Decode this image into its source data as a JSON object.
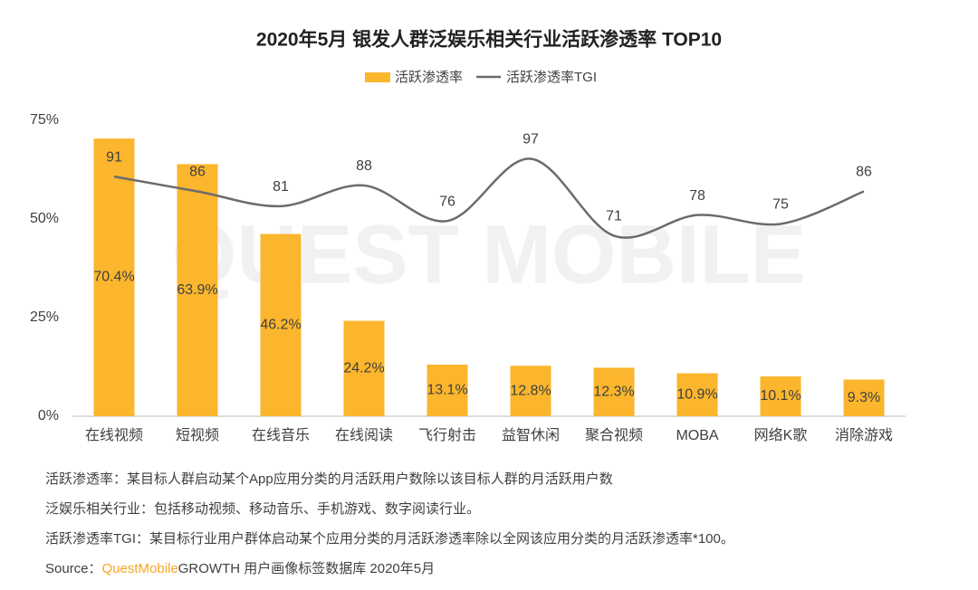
{
  "chart_data": {
    "type": "bar",
    "title": "2020年5月 银发人群泛娱乐相关行业活跃渗透率 TOP10",
    "watermark": "QUEST MOBILE",
    "categories": [
      "在线视频",
      "短视频",
      "在线音乐",
      "在线阅读",
      "飞行射击",
      "益智休闲",
      "聚合视频",
      "MOBA",
      "网络K歌",
      "消除游戏"
    ],
    "series": [
      {
        "name": "活跃渗透率",
        "type": "bar",
        "color": "#FBB62D",
        "values": [
          70.4,
          63.9,
          46.2,
          24.2,
          13.1,
          12.8,
          12.3,
          10.9,
          10.1,
          9.3
        ],
        "value_labels": [
          "70.4%",
          "63.9%",
          "46.2%",
          "24.2%",
          "13.1%",
          "12.8%",
          "12.3%",
          "10.9%",
          "10.1%",
          "9.3%"
        ]
      },
      {
        "name": "活跃渗透率TGI",
        "type": "line",
        "axis": "y2",
        "color": "#6B6B6B",
        "values": [
          91,
          86,
          81,
          88,
          76,
          97,
          71,
          78,
          75,
          86
        ]
      }
    ],
    "ylim": [
      0,
      75
    ],
    "yticks": [
      {
        "value": 0,
        "label": "0%"
      },
      {
        "value": 25,
        "label": "25%"
      },
      {
        "value": 50,
        "label": "50%"
      },
      {
        "value": 75,
        "label": "75%"
      }
    ],
    "y2lim": [
      10,
      110
    ],
    "legend": "top",
    "notes": [
      "活跃渗透率：某目标人群启动某个App应用分类的月活跃用户数除以该目标人群的月活跃用户数",
      "泛娱乐相关行业：包括移动视频、移动音乐、手机游戏、数字阅读行业。",
      "活跃渗透率TGI：某目标行业用户群体启动某个应用分类的月活跃渗透率除以全网该应用分类的月活跃渗透率*100。"
    ],
    "source": {
      "label": "Source：",
      "brand": "QuestMobile",
      "text": "GROWTH 用户画像标签数据库 2020年5月"
    }
  }
}
